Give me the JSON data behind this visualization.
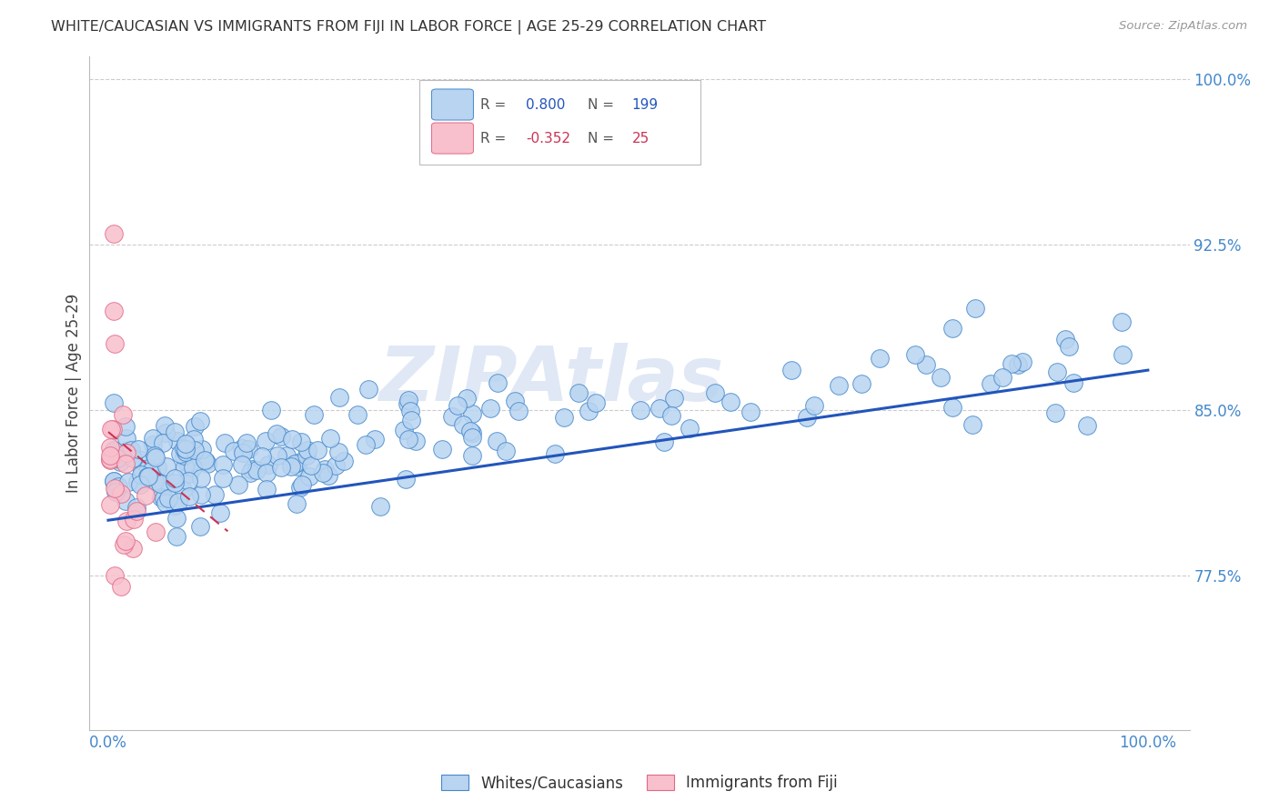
{
  "title": "WHITE/CAUCASIAN VS IMMIGRANTS FROM FIJI IN LABOR FORCE | AGE 25-29 CORRELATION CHART",
  "source_text": "Source: ZipAtlas.com",
  "ylabel": "In Labor Force | Age 25-29",
  "watermark": "ZIPAtlas",
  "blue_R": 0.8,
  "blue_N": 199,
  "pink_R": -0.352,
  "pink_N": 25,
  "blue_color": "#b8d4f0",
  "blue_edge": "#4488cc",
  "pink_color": "#f8c0cc",
  "pink_edge": "#e06888",
  "trend_blue": "#2255bb",
  "trend_pink": "#cc3355",
  "yticks": [
    0.775,
    0.85,
    0.925,
    1.0
  ],
  "ytick_labels": [
    "77.5%",
    "85.0%",
    "92.5%",
    "100.0%"
  ],
  "ymin": 0.705,
  "ymax": 1.01,
  "xmin": -0.018,
  "xmax": 1.04,
  "blue_trend_x0": 0.0,
  "blue_trend_x1": 1.0,
  "blue_trend_y0": 0.8,
  "blue_trend_y1": 0.868,
  "pink_trend_x0": 0.0,
  "pink_trend_x1": 0.115,
  "pink_trend_y0": 0.84,
  "pink_trend_y1": 0.795,
  "axis_label_color": "#4488cc",
  "grid_color": "#cccccc",
  "title_color": "#333333",
  "source_color": "#999999"
}
